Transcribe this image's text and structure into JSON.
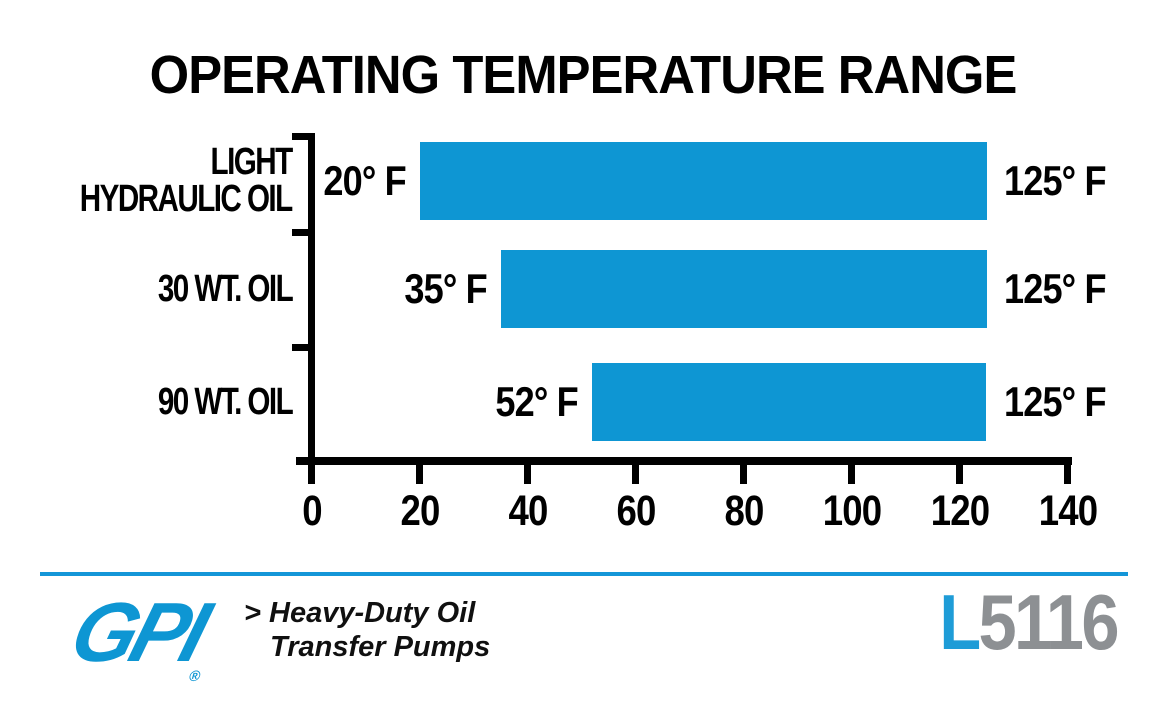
{
  "chart_data": {
    "type": "bar",
    "orientation": "horizontal",
    "title": "OPERATING TEMPERATURE RANGE",
    "xlabel": "",
    "ylabel": "",
    "unit": "°F",
    "xlim": [
      0,
      140
    ],
    "xticks": [
      0,
      20,
      40,
      60,
      80,
      100,
      120,
      140
    ],
    "grid": false,
    "legend": "none",
    "bar_color": "#0E96D3",
    "axis_color": "#000000",
    "bars": [
      {
        "category_lines": [
          "LIGHT",
          "HYDRAULIC OIL"
        ],
        "min": 20,
        "max": 125,
        "min_label": "20° F",
        "max_label": "125° F"
      },
      {
        "category_lines": [
          "30 WT. OIL"
        ],
        "min": 35,
        "max": 125,
        "min_label": "35° F",
        "max_label": "125° F"
      },
      {
        "category_lines": [
          "90 WT. OIL"
        ],
        "min": 52,
        "max": 125,
        "min_label": "52° F",
        "max_label": "125° F"
      }
    ]
  },
  "footer": {
    "brand": "GPI",
    "registered_mark": "®",
    "tagline_marker": ">",
    "tagline_line1": "Heavy-Duty Oil",
    "tagline_line2": "Transfer Pumps",
    "model_prefix": "L",
    "model_number": "5116"
  },
  "colors": {
    "bar_blue": "#0E96D3",
    "separator_blue": "#1496D8",
    "logo_blue": "#0E96D3",
    "model_prefix_blue": "#1E9CD7",
    "model_number_gray": "#8D9093",
    "text_black": "#000000"
  }
}
